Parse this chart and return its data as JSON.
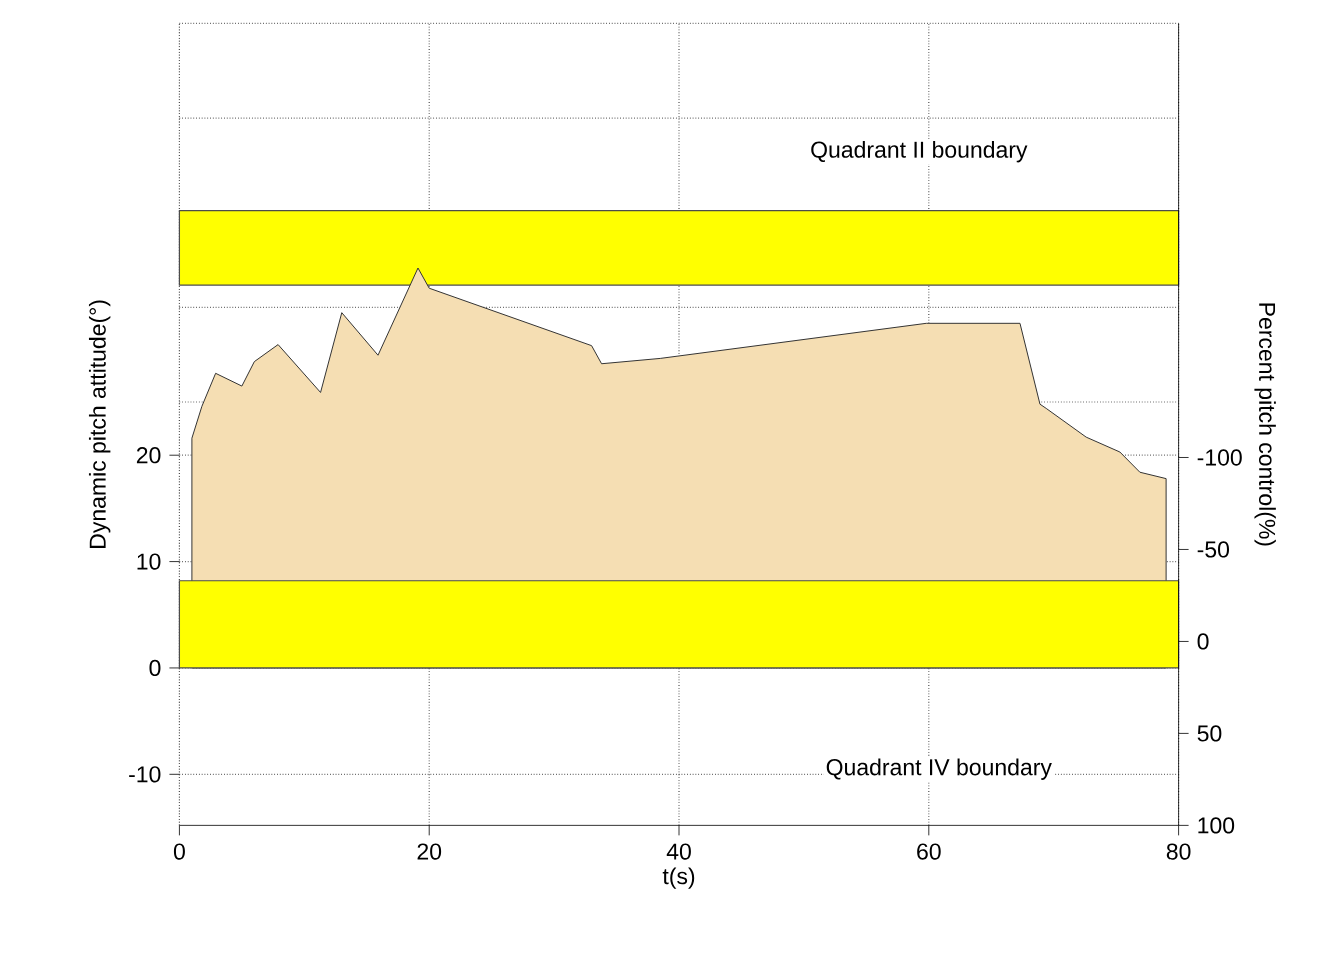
{
  "chart_data": {
    "type": "area",
    "xlabel": "t(s)",
    "ylabel": "Dynamic pitch attitude(°)",
    "y2label": "Percent pitch control(%)",
    "xlim": [
      0,
      80
    ],
    "xticks": [
      0,
      20,
      40,
      60,
      80
    ],
    "ylim": [
      -14.8,
      60.6
    ],
    "yticks": [
      -10,
      0,
      10,
      20,
      {
        "value": 25,
        "label": null
      },
      {
        "value": 33.9,
        "label": null
      },
      {
        "value": 42.8,
        "label": null
      },
      {
        "value": 51.7,
        "label": null
      },
      {
        "value": 60.6,
        "label": null
      }
    ],
    "y2lim": [
      100,
      -336
    ],
    "y2ticks": [
      -100,
      -50,
      0,
      50,
      100
    ],
    "grid": true,
    "series": [
      {
        "color": "#f5deb3",
        "x": [
          1,
          1.8,
          2.9,
          5,
          6,
          7.9,
          11.3,
          13,
          15.9,
          19.1,
          20,
          33,
          33.8,
          38.5,
          59.8,
          67.3,
          68.9,
          69.4,
          72.6,
          75.3,
          76.9,
          79
        ],
        "values": [
          21.6,
          24.6,
          27.7,
          26.5,
          28.8,
          30.4,
          25.9,
          33.4,
          29.4,
          37.6,
          35.7,
          30.3,
          28.6,
          29.1,
          32.4,
          32.4,
          24.8,
          24.4,
          21.7,
          20.3,
          18.4,
          17.8
        ]
      }
    ],
    "bands": [
      {
        "axis": "y",
        "from": 0,
        "to": 8.2,
        "color": "#ffff00"
      },
      {
        "axis": "y",
        "from": 36.0,
        "to": 43.0,
        "color": "#ffff00"
      }
    ],
    "annotations": [
      "Quadrant II boundary",
      "Quadrant IV boundary"
    ]
  }
}
